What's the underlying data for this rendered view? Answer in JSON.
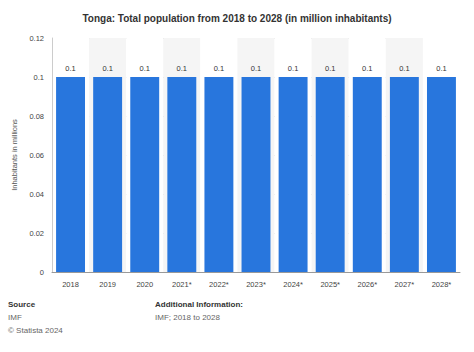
{
  "chart_data": {
    "type": "bar",
    "title": "Tonga: Total population from 2018 to 2028 (in million inhabitants)",
    "y_label": "Inhabitants in millions",
    "categories": [
      "2018",
      "2019",
      "2020",
      "2021*",
      "2022*",
      "2023*",
      "2024*",
      "2025*",
      "2026*",
      "2027*",
      "2028*"
    ],
    "values": [
      0.1,
      0.1,
      0.1,
      0.1,
      0.1,
      0.1,
      0.1,
      0.1,
      0.1,
      0.1,
      0.1
    ],
    "color": "#2876dd",
    "ylim": [
      0,
      0.12
    ],
    "yticks": [
      0,
      0.02,
      0.04,
      0.06,
      0.08,
      0.1,
      0.12
    ],
    "grid": true,
    "data_labels": true,
    "annotations": [
      "Source",
      "IMF",
      "© Statista 2024",
      "Additional Information:",
      "IMF; 2018 to 2028"
    ]
  }
}
